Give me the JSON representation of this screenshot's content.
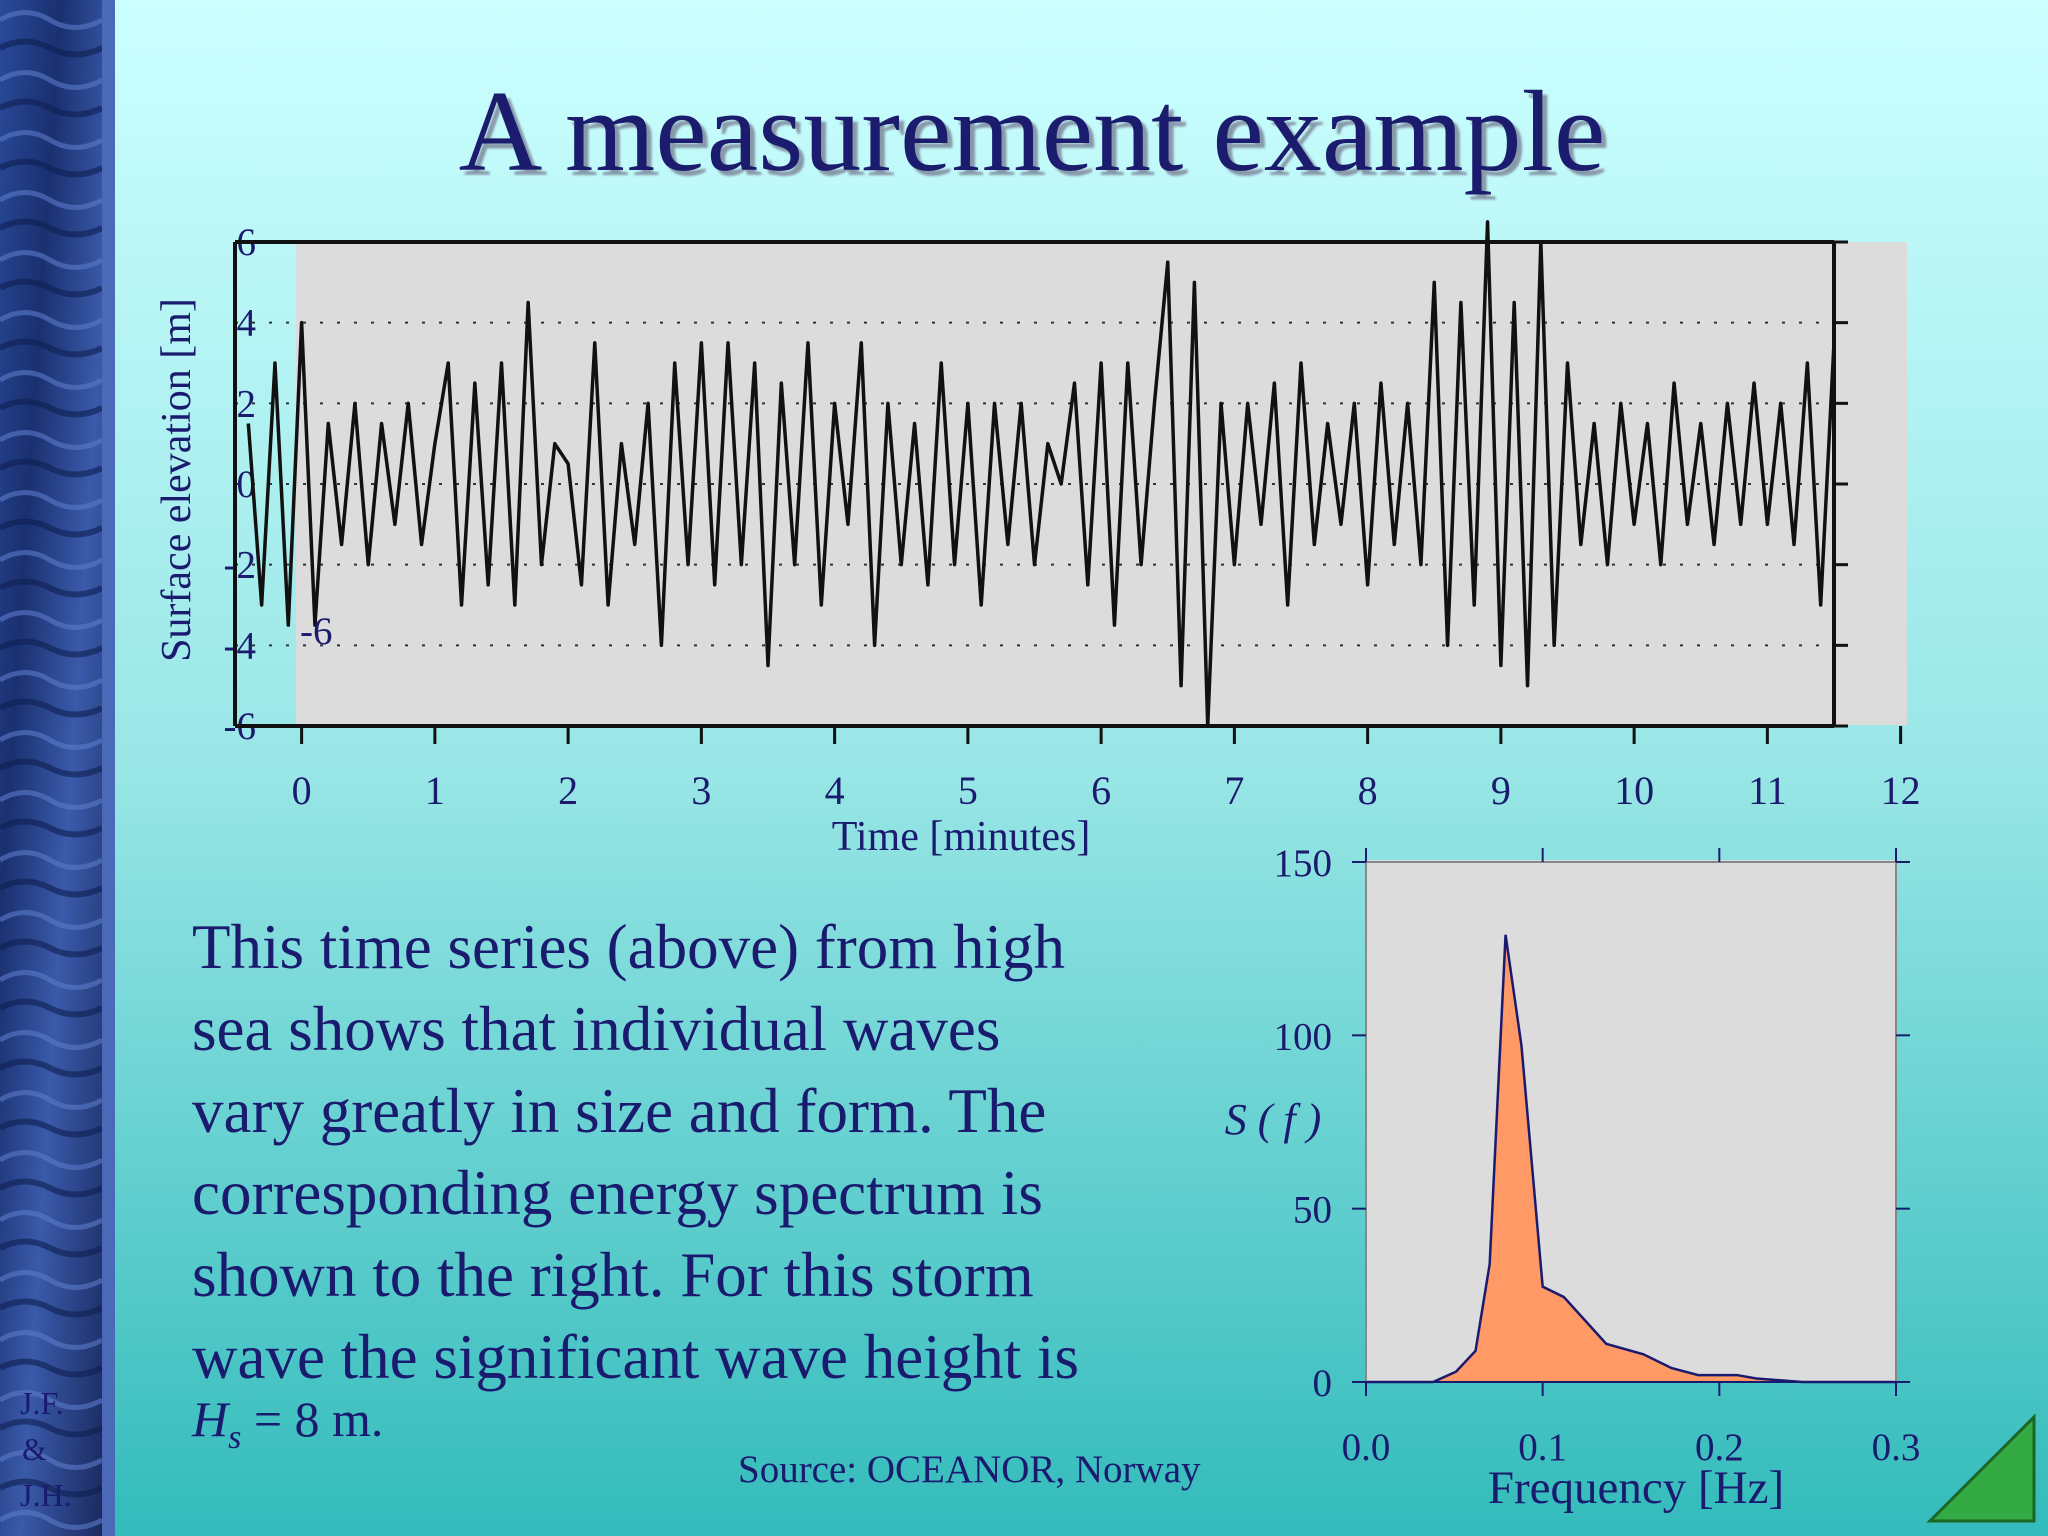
{
  "title": "A measurement example",
  "paragraph_lines": [
    "This time series (above) from high",
    "sea shows that individual waves",
    "vary greatly in size and form.  The",
    "corresponding energy spectrum is",
    "shown to the right.  For this storm",
    "wave the significant wave height is"
  ],
  "hs_line": {
    "symbol": "H",
    "subscript": "s",
    "rest": " = 8 m."
  },
  "source": "Source: OCEANOR, Norway",
  "authors": [
    "J.F.",
    "&",
    "J.H."
  ],
  "chart_data": [
    {
      "type": "line",
      "ylabel": "Surface elevation [m]",
      "xlabel": "Time [minutes]",
      "annotation": "-6",
      "color": "#111111",
      "grid": true,
      "xlim": [
        -0.5,
        11.5
      ],
      "xticks": [
        0,
        1,
        2,
        3,
        4,
        5,
        6,
        7,
        8,
        9,
        10,
        11,
        12
      ],
      "ylim": [
        -6,
        6
      ],
      "yticks": [
        6,
        4,
        2,
        0,
        -2,
        -4,
        -6
      ],
      "x": [
        -0.4,
        -0.3,
        -0.2,
        -0.1,
        0,
        0.1,
        0.2,
        0.3,
        0.4,
        0.5,
        0.6,
        0.7,
        0.8,
        0.9,
        1,
        1.1,
        1.2,
        1.3,
        1.4,
        1.5,
        1.6,
        1.7,
        1.8,
        1.9,
        2,
        2.1,
        2.2,
        2.3,
        2.4,
        2.5,
        2.6,
        2.7,
        2.8,
        2.9,
        3,
        3.1,
        3.2,
        3.3,
        3.4,
        3.5,
        3.6,
        3.7,
        3.8,
        3.9,
        4,
        4.1,
        4.2,
        4.3,
        4.4,
        4.5,
        4.6,
        4.7,
        4.8,
        4.9,
        5,
        5.1,
        5.2,
        5.3,
        5.4,
        5.5,
        5.6,
        5.7,
        5.8,
        5.9,
        6,
        6.1,
        6.2,
        6.3,
        6.4,
        6.5,
        6.6,
        6.7,
        6.8,
        6.9,
        7,
        7.1,
        7.2,
        7.3,
        7.4,
        7.5,
        7.6,
        7.7,
        7.8,
        7.9,
        8,
        8.1,
        8.2,
        8.3,
        8.4,
        8.5,
        8.6,
        8.7,
        8.8,
        8.9,
        9,
        9.1,
        9.2,
        9.3,
        9.4,
        9.5,
        9.6,
        9.7,
        9.8,
        9.9,
        10,
        10.1,
        10.2,
        10.3,
        10.4,
        10.5,
        10.6,
        10.7,
        10.8,
        10.9,
        11,
        11.1,
        11.2,
        11.3,
        11.4,
        11.5
      ],
      "values": [
        1.5,
        -3,
        3,
        -3.5,
        4,
        -3.5,
        1.5,
        -1.5,
        2,
        -2,
        1.5,
        -1,
        2,
        -1.5,
        1,
        3,
        -3,
        2.5,
        -2.5,
        3,
        -3,
        4.5,
        -2,
        1,
        0.5,
        -2.5,
        3.5,
        -3,
        1,
        -1.5,
        2,
        -4,
        3,
        -2,
        3.5,
        -2.5,
        3.5,
        -2,
        3,
        -4.5,
        2.5,
        -2,
        3.5,
        -3,
        2,
        -1,
        3.5,
        -4,
        2,
        -2,
        1.5,
        -2.5,
        3,
        -2,
        2,
        -3,
        2,
        -1.5,
        2,
        -2,
        1,
        0,
        2.5,
        -2.5,
        3,
        -3.5,
        3,
        -2,
        2,
        5.5,
        -5,
        5,
        -6,
        2,
        -2,
        2,
        -1,
        2.5,
        -3,
        3,
        -1.5,
        1.5,
        -1,
        2,
        -2.5,
        2.5,
        -1.5,
        2,
        -2,
        5,
        -4,
        4.5,
        -3,
        6.5,
        -4.5,
        4.5,
        -5,
        6,
        -4,
        3,
        -1.5,
        1.5,
        -2,
        2,
        -1,
        1.5,
        -2,
        2.5,
        -1,
        1.5,
        -1.5,
        2,
        -1,
        2.5,
        -1,
        2,
        -1.5,
        3,
        -3,
        3.5
      ]
    },
    {
      "type": "area",
      "ylabel": "S ( f )",
      "xlabel": "Frequency [Hz]",
      "color": "#ff9966",
      "edge_color": "#1a1a6e",
      "xlim": [
        0,
        0.3
      ],
      "xticks": [
        {
          "value": 0,
          "label": "0.0"
        },
        0.1,
        0.2,
        0.3
      ],
      "ylim": [
        0,
        150
      ],
      "yticks": [
        0,
        50,
        100,
        150
      ],
      "x": [
        0,
        0.038,
        0.051,
        0.062,
        0.07,
        0.079,
        0.088,
        0.1,
        0.112,
        0.136,
        0.157,
        0.173,
        0.188,
        0.21,
        0.221,
        0.247,
        0.3
      ],
      "values": [
        0,
        0,
        3,
        9,
        34,
        129,
        97,
        27.5,
        24.5,
        11,
        8,
        4,
        2,
        2,
        1,
        0,
        0
      ]
    }
  ]
}
